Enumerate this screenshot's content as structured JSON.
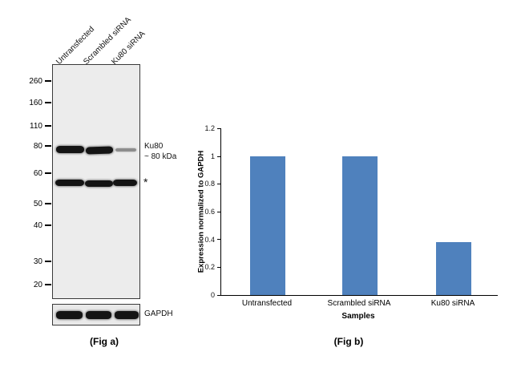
{
  "fig_a": {
    "caption": "(Fig a)",
    "lanes": [
      "Untransfected",
      "Scrambled siRNA",
      "Ku80 siRNA"
    ],
    "mw_markers": [
      "260",
      "160",
      "110",
      "80",
      "60",
      "50",
      "40",
      "30",
      "20"
    ],
    "target_label": "Ku80",
    "target_size": "~ 80 kDa",
    "nonspecific_marker": "*",
    "loading_control_label": "GAPDH"
  },
  "fig_b": {
    "caption": "(Fig b)"
  },
  "chart_data": {
    "type": "bar",
    "title": "",
    "categories": [
      "Untransfected",
      "Scrambled siRNA",
      "Ku80 siRNA"
    ],
    "values": [
      1.0,
      1.0,
      0.38
    ],
    "xlabel": "Samples",
    "ylabel": "Expression normalized to GAPDH",
    "ylim": [
      0,
      1.2
    ],
    "yticks": [
      0,
      0.2,
      0.4,
      0.6,
      0.8,
      1,
      1.2
    ],
    "bar_color": "#4f81bd",
    "grid": false,
    "legend_position": "none"
  }
}
